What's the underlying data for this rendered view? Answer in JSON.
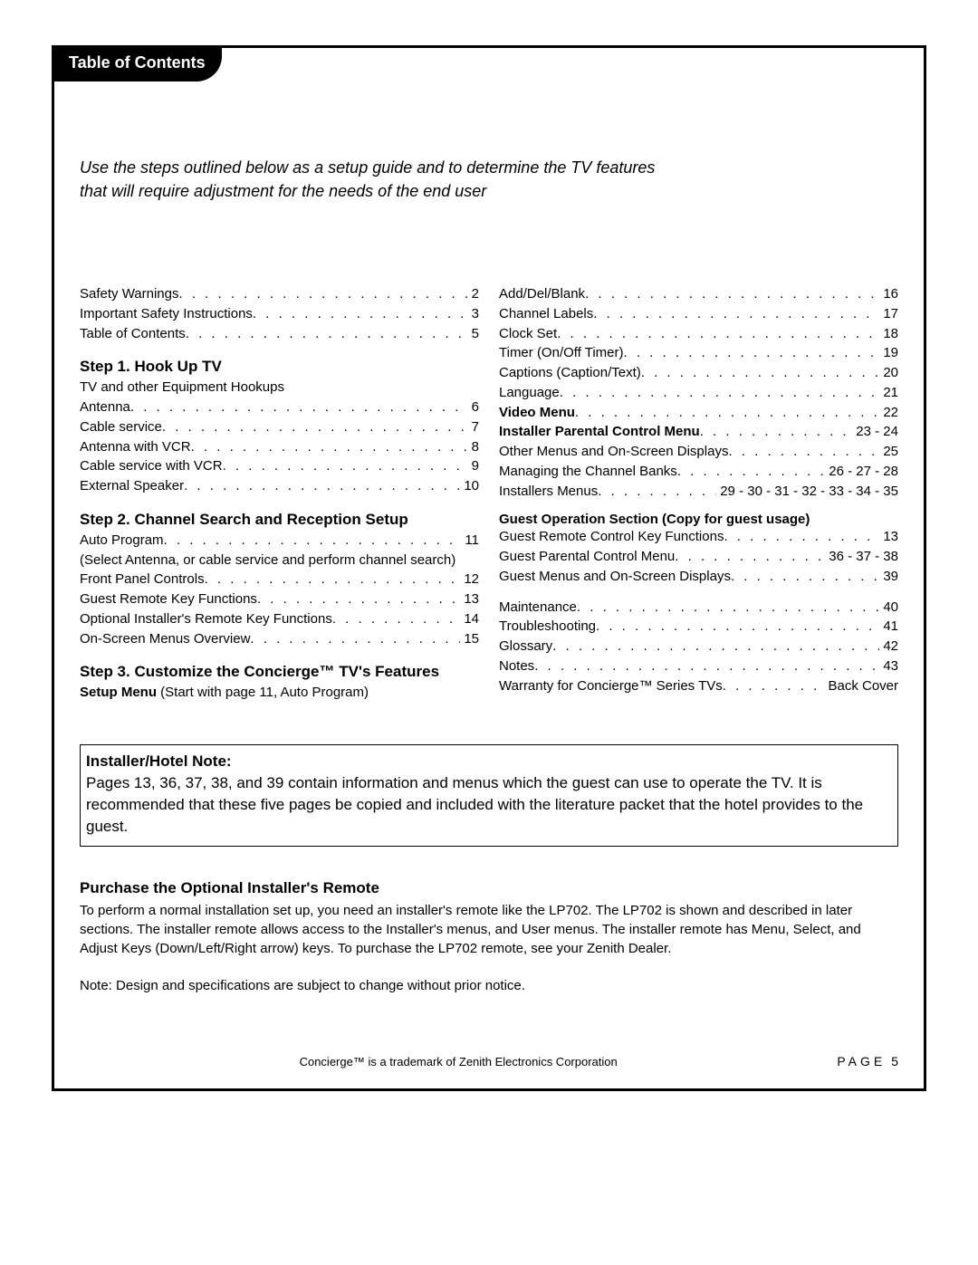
{
  "tab_title": "Table of Contents",
  "intro_line1": "Use the steps outlined below as a setup guide and to determine the TV features",
  "intro_line2": "that will require adjustment for the needs of the end user",
  "left": {
    "pre": [
      {
        "label": "Safety Warnings",
        "page": "2"
      },
      {
        "label": "Important Safety Instructions",
        "page": "3"
      },
      {
        "label": "Table of Contents",
        "page": "5"
      }
    ],
    "step1_heading": "Step 1. Hook Up TV",
    "step1_sub": "TV and other Equipment Hookups",
    "step1": [
      {
        "label": "Antenna",
        "page": "6"
      },
      {
        "label": "Cable service",
        "page": "7"
      },
      {
        "label": "Antenna with VCR",
        "page": "8"
      },
      {
        "label": "Cable service with VCR",
        "page": "9"
      },
      {
        "label": "External Speaker",
        "page": "10"
      }
    ],
    "step2_heading": "Step 2. Channel Search and Reception Setup",
    "step2_a": [
      {
        "label": "Auto Program",
        "page": "11"
      }
    ],
    "step2_note": "(Select Antenna, or cable service and perform channel search)",
    "step2_b": [
      {
        "label": "Front Panel Controls",
        "page": "12"
      },
      {
        "label": "Guest Remote Key Functions",
        "page": "13"
      },
      {
        "label": "Optional Installer's Remote Key Functions",
        "page": "14"
      },
      {
        "label": "On-Screen Menus Overview",
        "page": "15"
      }
    ],
    "step3_heading": "Step 3. Customize the Concierge™ TV's Features",
    "setup_bold": "Setup Menu",
    "setup_rest": " (Start with page 11, Auto Program)"
  },
  "right": {
    "a": [
      {
        "label": "Add/Del/Blank",
        "page": "16"
      },
      {
        "label": "Channel Labels",
        "page": "17"
      },
      {
        "label": "Clock Set",
        "page": "18"
      },
      {
        "label": "Timer (On/Off Timer)",
        "page": "19"
      },
      {
        "label": "Captions (Caption/Text)",
        "page": "20"
      },
      {
        "label": "Language",
        "page": "21"
      },
      {
        "label": "Video Menu",
        "page": "22",
        "bold": true
      },
      {
        "label": "Installer Parental Control Menu",
        "page": "23 - 24",
        "bold": true
      },
      {
        "label": "Other Menus and On-Screen Displays",
        "page": "25"
      },
      {
        "label": "Managing the Channel Banks",
        "page": "26 - 27 - 28"
      },
      {
        "label": "Installers Menus",
        "page": "29 - 30 - 31 - 32 - 33 - 34 - 35"
      }
    ],
    "guest_heading": "Guest Operation Section (Copy for guest usage)",
    "guest": [
      {
        "label": "Guest Remote Control Key Functions",
        "page": "13"
      },
      {
        "label": "Guest Parental Control Menu",
        "page": "36 - 37 - 38"
      },
      {
        "label": "Guest Menus and On-Screen Displays",
        "page": "39"
      }
    ],
    "b": [
      {
        "label": "Maintenance",
        "page": "40"
      },
      {
        "label": "Troubleshooting",
        "page": "41"
      },
      {
        "label": "Glossary",
        "page": "42"
      },
      {
        "label": "Notes",
        "page": "43"
      },
      {
        "label": "Warranty for Concierge™ Series TVs",
        "page": "Back Cover"
      }
    ]
  },
  "note_box": {
    "title": "Installer/Hotel Note:",
    "body": "Pages 13, 36, 37, 38, and 39 contain information and menus which the guest can use to operate the TV. It is recommended that these five pages be copied and included with the literature packet that the hotel provides to the guest."
  },
  "purchase": {
    "title": "Purchase the Optional Installer's Remote",
    "body": "To perform a normal installation set up, you need an installer's remote like the LP702. The LP702 is shown and described in later sections. The installer remote allows access to the Installer's menus, and User menus. The installer remote has Menu, Select, and Adjust Keys (Down/Left/Right arrow) keys. To purchase the LP702 remote, see your Zenith Dealer."
  },
  "design_note": "Note: Design and specifications are subject to change without prior notice.",
  "trademark": "Concierge™ is a trademark of Zenith Electronics Corporation",
  "page_label": "PAGE",
  "page_number": "5"
}
